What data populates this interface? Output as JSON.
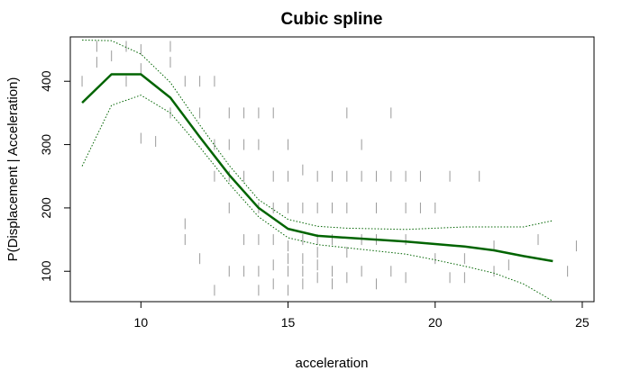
{
  "chart_data": {
    "type": "line",
    "title": "Cubic spline",
    "xlabel": "acceleration",
    "ylabel": "P(Displacement | Acceleration)",
    "xlim": [
      7.6,
      25.4
    ],
    "ylim": [
      52,
      470
    ],
    "xticks": [
      10,
      15,
      20,
      25
    ],
    "yticks": [
      100,
      200,
      300,
      400
    ],
    "grid": false,
    "colors": {
      "fit": "#006400",
      "band": "#006400",
      "rug": "#9a9a9a",
      "frame": "#000000"
    },
    "series": [
      {
        "style": "solid",
        "x": [
          8,
          9,
          10,
          11,
          12,
          13,
          14,
          15,
          16,
          17,
          18,
          19,
          20,
          21,
          22,
          23,
          24
        ],
        "y": [
          366,
          411,
          411,
          374,
          312,
          252,
          200,
          167,
          156,
          153,
          150,
          147,
          143,
          139,
          133,
          124,
          116
        ]
      },
      {
        "style": "dotted",
        "x": [
          8,
          9,
          10,
          11,
          12,
          13,
          14,
          15,
          16,
          17,
          18,
          19,
          20,
          21,
          22,
          23,
          24
        ],
        "y": [
          465,
          464,
          443,
          398,
          331,
          267,
          213,
          182,
          171,
          168,
          167,
          166,
          168,
          170,
          170,
          170,
          180
        ]
      },
      {
        "style": "dotted",
        "x": [
          8,
          9,
          10,
          11,
          12,
          13,
          14,
          15,
          16,
          17,
          18,
          19,
          20,
          21,
          22,
          23,
          24
        ],
        "y": [
          266,
          362,
          378,
          350,
          296,
          238,
          186,
          153,
          142,
          137,
          132,
          127,
          118,
          108,
          97,
          80,
          53
        ]
      }
    ],
    "rug": {
      "x": [
        8.0,
        8.5,
        8.5,
        9.0,
        9.5,
        9.5,
        10.0,
        10.0,
        10.0,
        10.5,
        11.0,
        11.0,
        11.0,
        11.5,
        11.5,
        11.5,
        12.0,
        12.0,
        12.0,
        12.5,
        12.5,
        12.5,
        12.5,
        13.0,
        13.0,
        13.0,
        13.0,
        13.0,
        13.5,
        13.5,
        13.5,
        13.5,
        13.5,
        14.0,
        14.0,
        14.0,
        14.0,
        14.0,
        14.0,
        14.5,
        14.5,
        14.5,
        14.5,
        14.5,
        14.5,
        15.0,
        15.0,
        15.0,
        15.0,
        15.0,
        15.0,
        15.0,
        15.5,
        15.5,
        15.5,
        15.5,
        15.5,
        15.5,
        16.0,
        16.0,
        16.0,
        16.0,
        16.0,
        16.0,
        16.5,
        16.5,
        16.5,
        16.5,
        16.5,
        17.0,
        17.0,
        17.0,
        17.0,
        17.0,
        17.5,
        17.5,
        17.5,
        17.5,
        18.0,
        18.0,
        18.0,
        18.0,
        18.5,
        18.5,
        18.5,
        19.0,
        19.0,
        19.0,
        19.0,
        19.5,
        19.5,
        20.0,
        20.0,
        20.5,
        20.5,
        21.0,
        21.0,
        21.5,
        22.0,
        22.0,
        22.5,
        23.5,
        24.5,
        24.8
      ],
      "y": [
        400,
        455,
        430,
        440,
        400,
        455,
        420,
        310,
        450,
        305,
        350,
        430,
        455,
        400,
        175,
        150,
        400,
        350,
        120,
        400,
        300,
        250,
        70,
        350,
        300,
        250,
        200,
        100,
        350,
        300,
        250,
        150,
        100,
        350,
        300,
        200,
        150,
        100,
        70,
        350,
        250,
        200,
        150,
        110,
        80,
        300,
        250,
        200,
        140,
        120,
        100,
        70,
        260,
        200,
        150,
        120,
        100,
        80,
        250,
        200,
        150,
        130,
        110,
        90,
        250,
        200,
        150,
        100,
        80,
        350,
        250,
        200,
        130,
        90,
        300,
        250,
        150,
        100,
        250,
        200,
        150,
        80,
        350,
        250,
        100,
        250,
        200,
        150,
        90,
        250,
        200,
        200,
        120,
        250,
        90,
        120,
        90,
        250,
        140,
        100,
        110,
        150,
        100,
        140
      ]
    }
  }
}
